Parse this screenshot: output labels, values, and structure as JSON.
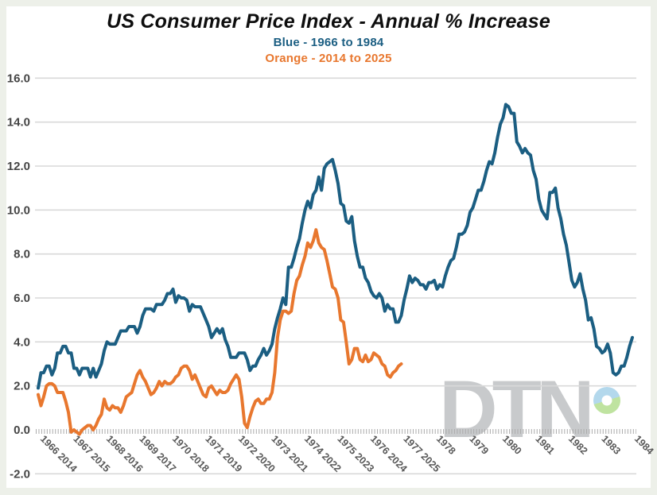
{
  "title": "US Consumer Price Index - Annual % Increase",
  "legend": {
    "blue_label": "Blue - 1966 to 1984",
    "orange_label": "Orange - 2014 to 2025"
  },
  "watermark": {
    "text": "DTN"
  },
  "colors": {
    "blue": "#1b5e82",
    "orange": "#e8772e",
    "grid": "#d9d9d9",
    "axis_ticks": "#ababab",
    "title": "#0e0e0e",
    "y_label": "#454545",
    "x_label": "#575757",
    "watermark_gray": "#c8cacc",
    "donut_blue": "#b3d8ec",
    "donut_green": "#bfe3a0",
    "background_border": "#edf0e9"
  },
  "chart_data": {
    "type": "line",
    "title": "US Consumer Price Index - Annual % Increase",
    "xlabel": "",
    "ylabel": "",
    "ylim": [
      -2.0,
      16.0
    ],
    "y_ticks": [
      16,
      14,
      12,
      10,
      8,
      6,
      4,
      2,
      0,
      -2
    ],
    "grid": "horizontal solid gridlines; dotted monthly tick row along 0.0 axis",
    "legend_position": "subtitle lines under title",
    "x_tick_labels": [
      "1966 2014",
      "1967 2015",
      "1968 2016",
      "1969 2017",
      "1970 2018",
      "1971 2019",
      "1972 2020",
      "1973 2021",
      "1974 2022",
      "1975 2023",
      "1976 2024",
      "1977 2025",
      "1978",
      "1979",
      "1980",
      "1981",
      "1982",
      "1983",
      "1984"
    ],
    "x_note": "monthly data; both series aligned so 1966 overlays 2014",
    "series": [
      {
        "name": "CPI annual % increase, Jan 1966 - Jan 1984",
        "color_key": "blue",
        "start_label": "1966",
        "points_per_year": 12,
        "values": [
          1.9,
          2.6,
          2.6,
          2.9,
          2.9,
          2.5,
          2.8,
          3.5,
          3.5,
          3.8,
          3.8,
          3.5,
          3.5,
          2.8,
          2.8,
          2.5,
          2.8,
          2.8,
          2.8,
          2.4,
          2.8,
          2.4,
          2.7,
          3.0,
          3.6,
          4.0,
          3.9,
          3.9,
          3.9,
          4.2,
          4.5,
          4.5,
          4.5,
          4.7,
          4.7,
          4.7,
          4.4,
          4.7,
          5.2,
          5.5,
          5.5,
          5.5,
          5.4,
          5.7,
          5.7,
          5.7,
          5.9,
          6.2,
          6.2,
          6.4,
          5.8,
          6.1,
          6.0,
          6.0,
          5.9,
          5.4,
          5.7,
          5.6,
          5.6,
          5.6,
          5.3,
          5.0,
          4.7,
          4.2,
          4.4,
          4.6,
          4.4,
          4.6,
          4.1,
          3.8,
          3.3,
          3.3,
          3.3,
          3.5,
          3.5,
          3.5,
          3.2,
          2.7,
          2.9,
          2.9,
          3.2,
          3.4,
          3.7,
          3.4,
          3.6,
          3.9,
          4.6,
          5.1,
          5.5,
          6.0,
          5.7,
          7.4,
          7.4,
          7.8,
          8.3,
          8.7,
          9.4,
          10.0,
          10.4,
          10.1,
          10.7,
          10.9,
          11.5,
          10.9,
          11.9,
          12.1,
          12.2,
          12.3,
          11.8,
          11.2,
          10.3,
          10.2,
          9.5,
          9.4,
          9.7,
          8.6,
          7.9,
          7.4,
          7.4,
          6.9,
          6.7,
          6.3,
          6.1,
          6.0,
          6.2,
          6.0,
          5.4,
          5.7,
          5.5,
          5.5,
          4.9,
          4.9,
          5.2,
          5.9,
          6.4,
          7.0,
          6.7,
          6.9,
          6.8,
          6.6,
          6.6,
          6.4,
          6.7,
          6.7,
          6.8,
          6.4,
          6.6,
          6.5,
          7.0,
          7.4,
          7.7,
          7.8,
          8.3,
          8.9,
          8.9,
          9.0,
          9.3,
          9.9,
          10.1,
          10.5,
          10.9,
          10.9,
          11.3,
          11.8,
          12.2,
          12.1,
          12.6,
          13.3,
          13.9,
          14.2,
          14.8,
          14.7,
          14.4,
          14.4,
          13.1,
          12.9,
          12.6,
          12.8,
          12.6,
          12.5,
          11.8,
          11.4,
          10.5,
          10.0,
          9.8,
          9.6,
          10.8,
          10.8,
          11.0,
          10.1,
          9.6,
          8.9,
          8.4,
          7.6,
          6.8,
          6.5,
          6.7,
          7.1,
          6.4,
          5.9,
          5.0,
          5.1,
          4.6,
          3.8,
          3.7,
          3.5,
          3.6,
          3.9,
          3.5,
          2.6,
          2.5,
          2.6,
          2.9,
          2.9,
          3.3,
          3.8,
          4.2
        ]
      },
      {
        "name": "CPI annual % increase, Jan 2014 - Jan 2025",
        "color_key": "orange",
        "start_label": "2014",
        "points_per_year": 12,
        "values": [
          1.6,
          1.1,
          1.5,
          2.0,
          2.1,
          2.1,
          2.0,
          1.7,
          1.7,
          1.7,
          1.3,
          0.8,
          -0.1,
          0.0,
          -0.1,
          -0.2,
          0.0,
          0.1,
          0.2,
          0.2,
          0.0,
          0.2,
          0.5,
          0.7,
          1.4,
          1.0,
          0.9,
          1.1,
          1.0,
          1.0,
          0.8,
          1.1,
          1.5,
          1.6,
          1.7,
          2.1,
          2.5,
          2.7,
          2.4,
          2.2,
          1.9,
          1.6,
          1.7,
          1.9,
          2.2,
          2.0,
          2.2,
          2.1,
          2.1,
          2.2,
          2.4,
          2.5,
          2.8,
          2.9,
          2.9,
          2.7,
          2.3,
          2.5,
          2.2,
          1.9,
          1.6,
          1.5,
          1.9,
          2.0,
          1.8,
          1.6,
          1.8,
          1.7,
          1.7,
          1.8,
          2.1,
          2.3,
          2.5,
          2.3,
          1.5,
          0.3,
          0.1,
          0.6,
          1.0,
          1.3,
          1.4,
          1.2,
          1.2,
          1.4,
          1.4,
          1.7,
          2.6,
          4.2,
          5.0,
          5.4,
          5.4,
          5.3,
          5.4,
          6.2,
          6.8,
          7.0,
          7.5,
          7.9,
          8.5,
          8.3,
          8.6,
          9.1,
          8.5,
          8.3,
          8.2,
          7.7,
          7.1,
          6.5,
          6.4,
          6.0,
          5.0,
          4.9,
          4.0,
          3.0,
          3.2,
          3.7,
          3.7,
          3.2,
          3.1,
          3.4,
          3.1,
          3.2,
          3.5,
          3.4,
          3.3,
          3.0,
          2.9,
          2.5,
          2.4,
          2.6,
          2.7,
          2.9,
          3.0
        ]
      }
    ]
  }
}
